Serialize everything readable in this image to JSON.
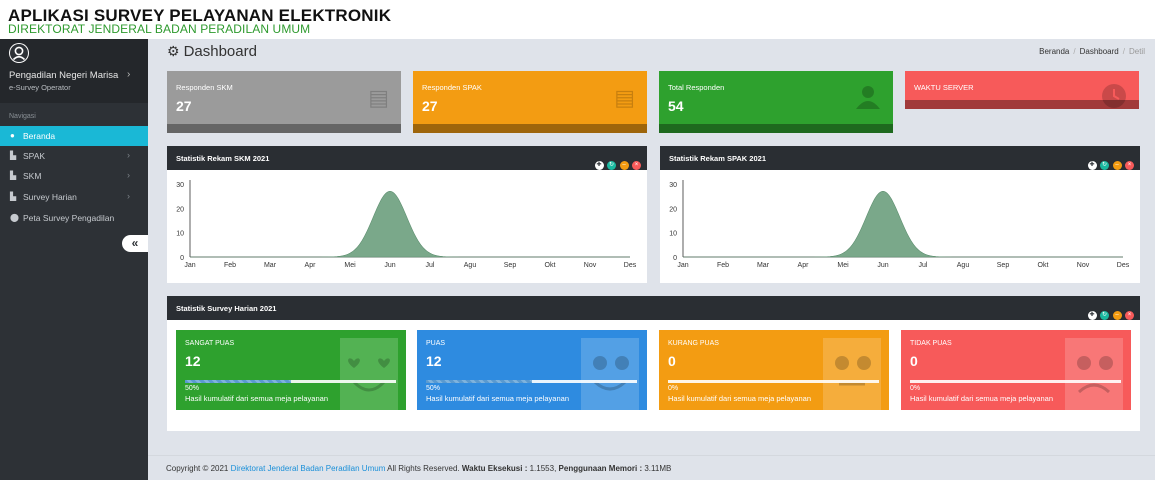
{
  "header": {
    "app_title": "APLIKASI SURVEY PELAYANAN ELEKTRONIK",
    "app_subtitle": "DIREKTORAT JENDERAL BADAN PERADILAN UMUM"
  },
  "sidebar": {
    "user_name": "Pengadilan Negeri Marisa",
    "user_role": "e-Survey Operator",
    "nav_header": "Navigasi",
    "items": [
      {
        "label": "Beranda",
        "icon": "circle-icon",
        "active": true
      },
      {
        "label": "SPAK",
        "icon": "file-icon",
        "chevron": true
      },
      {
        "label": "SKM",
        "icon": "file-icon",
        "chevron": true
      },
      {
        "label": "Survey Harian",
        "icon": "file-icon",
        "chevron": true
      },
      {
        "label": "Peta Survey Pengadilan",
        "icon": "map-marker-icon"
      }
    ],
    "collapse_label": "«"
  },
  "page": {
    "title": "Dashboard",
    "breadcrumb": [
      "Beranda",
      "Dashboard",
      "Detil"
    ]
  },
  "stats": [
    {
      "label": "Responden SKM",
      "value": "27",
      "color": "#9b9b9b",
      "icon": "book-icon"
    },
    {
      "label": "Responden SPAK",
      "value": "27",
      "color": "#f39c12",
      "icon": "book-icon"
    },
    {
      "label": "Total Responden",
      "value": "54",
      "color": "#2ea12e",
      "icon": "user-icon"
    },
    {
      "label": "WAKTU SERVER",
      "value": "",
      "color": "#f75a5a",
      "icon": "clock-icon"
    }
  ],
  "charts": {
    "skm": {
      "title": "Statistik Rekam SKM 2021"
    },
    "spak": {
      "title": "Statistik Rekam SPAK 2021"
    }
  },
  "chart_data": [
    {
      "type": "area",
      "title": "Statistik Rekam SKM 2021",
      "categories": [
        "Jan",
        "Feb",
        "Mar",
        "Apr",
        "Mei",
        "Jun",
        "Jul",
        "Agu",
        "Sep",
        "Okt",
        "Nov",
        "Des"
      ],
      "values": [
        0,
        0,
        0,
        0,
        0,
        27,
        0,
        0,
        0,
        0,
        0,
        0
      ],
      "yticks": [
        0,
        10,
        20,
        30
      ],
      "ylim": [
        0,
        30
      ],
      "color": "#7aa88a"
    },
    {
      "type": "area",
      "title": "Statistik Rekam SPAK 2021",
      "categories": [
        "Jan",
        "Feb",
        "Mar",
        "Apr",
        "Mei",
        "Jun",
        "Jul",
        "Agu",
        "Sep",
        "Okt",
        "Nov",
        "Des"
      ],
      "values": [
        0,
        0,
        0,
        0,
        0,
        27,
        0,
        0,
        0,
        0,
        0,
        0
      ],
      "yticks": [
        0,
        10,
        20,
        30
      ],
      "ylim": [
        0,
        30
      ],
      "color": "#7aa88a"
    }
  ],
  "harian": {
    "title": "Statistik Survey Harian 2021",
    "boxes": [
      {
        "label": "SANGAT PUAS",
        "value": "12",
        "percent": "50%",
        "fraction": 0.5,
        "desc": "Hasil kumulatif dari semua meja pelayanan",
        "color": "#2ea12e",
        "icon": "happy-face-icon"
      },
      {
        "label": "PUAS",
        "value": "12",
        "percent": "50%",
        "fraction": 0.5,
        "desc": "Hasil kumulatif dari semua meja pelayanan",
        "color": "#2e8be0",
        "icon": "smile-face-icon"
      },
      {
        "label": "KURANG PUAS",
        "value": "0",
        "percent": "0%",
        "fraction": 0,
        "desc": "Hasil kumulatif dari semua meja pelayanan",
        "color": "#f39c12",
        "icon": "neutral-face-icon"
      },
      {
        "label": "TIDAK PUAS",
        "value": "0",
        "percent": "0%",
        "fraction": 0,
        "desc": "Hasil kumulatif dari semua meja pelayanan",
        "color": "#f75a5a",
        "icon": "sad-face-icon"
      }
    ]
  },
  "footer": {
    "copyright": "Copyright © 2021",
    "link": "Direktorat Jenderal Badan Peradilan Umum",
    "rights": "All Rights Reserved.",
    "exec_label": "Waktu Eksekusi :",
    "exec_value": "1.1553,",
    "mem_label": "Penggunaan Memori :",
    "mem_value": "3.11MB"
  }
}
